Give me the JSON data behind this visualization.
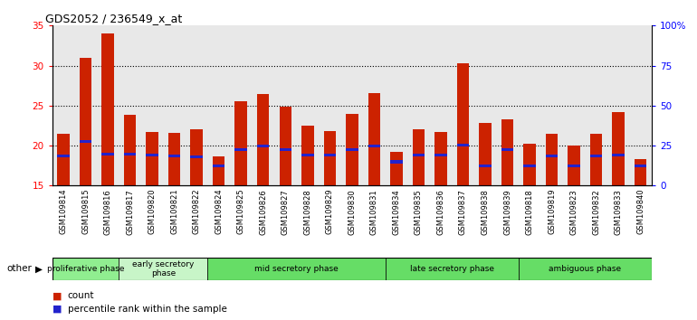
{
  "title": "GDS2052 / 236549_x_at",
  "samples": [
    "GSM109814",
    "GSM109815",
    "GSM109816",
    "GSM109817",
    "GSM109820",
    "GSM109821",
    "GSM109822",
    "GSM109824",
    "GSM109825",
    "GSM109826",
    "GSM109827",
    "GSM109828",
    "GSM109829",
    "GSM109830",
    "GSM109831",
    "GSM109834",
    "GSM109835",
    "GSM109836",
    "GSM109837",
    "GSM109838",
    "GSM109839",
    "GSM109818",
    "GSM109819",
    "GSM109823",
    "GSM109832",
    "GSM109833",
    "GSM109840"
  ],
  "count_values": [
    21.5,
    31.0,
    34.0,
    23.8,
    21.7,
    21.6,
    22.0,
    18.7,
    25.5,
    26.5,
    24.9,
    22.5,
    21.8,
    24.0,
    26.6,
    19.2,
    22.0,
    21.7,
    30.3,
    22.8,
    23.3,
    20.2,
    21.5,
    20.0,
    21.5,
    24.2,
    18.3
  ],
  "percentile_values": [
    18.5,
    20.3,
    18.8,
    18.8,
    18.6,
    18.5,
    18.4,
    17.3,
    19.3,
    19.8,
    19.3,
    18.6,
    18.6,
    19.3,
    19.8,
    17.8,
    18.6,
    18.6,
    19.9,
    17.3,
    19.3,
    17.3,
    18.5,
    17.3,
    18.5,
    18.6,
    17.3
  ],
  "phases": [
    {
      "name": "proliferative phase",
      "start": 0,
      "end": 3,
      "color": "#90EE90"
    },
    {
      "name": "early secretory\nphase",
      "start": 3,
      "end": 7,
      "color": "#c8f5c8"
    },
    {
      "name": "mid secretory phase",
      "start": 7,
      "end": 15,
      "color": "#66DD66"
    },
    {
      "name": "late secretory phase",
      "start": 15,
      "end": 21,
      "color": "#66DD66"
    },
    {
      "name": "ambiguous phase",
      "start": 21,
      "end": 27,
      "color": "#66DD66"
    }
  ],
  "ymin": 15,
  "ymax": 35,
  "yticks_left": [
    15,
    20,
    25,
    30,
    35
  ],
  "yticks_right_pct": [
    0,
    25,
    50,
    75,
    100
  ],
  "bar_color_red": "#cc2200",
  "bar_color_blue": "#2222cc",
  "background_color": "#e8e8e8",
  "other_label": "other"
}
